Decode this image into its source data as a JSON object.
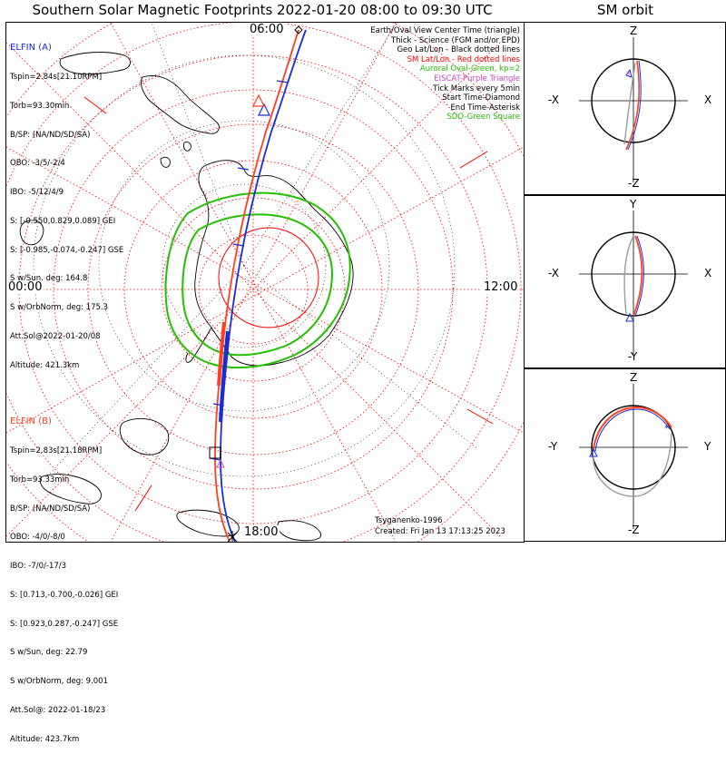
{
  "title": "Southern Solar Magnetic Footprints 2022-01-20 08:00 to 09:30 UTC",
  "orbit_title": "SM orbit",
  "elfin_a": {
    "lines": [
      "ELFIN (A)",
      "Tspin=2.84s[21.10RPM]",
      "Torb=93.30min",
      "B/SP: (NA/ND/SD/SA)",
      "OBO: -3/5/-2/4",
      "IBO: -5/12/4/9",
      "S: [-0.550,0.829,0.089] GEI",
      "S: [-0.985,-0.074,-0.247] GSE",
      "S w/Sun, deg: 164.8",
      "S w/OrbNorm, deg: 175.3",
      "Att.Sol@2022-01-20/08",
      "Altitude: 421.3km"
    ],
    "color": "#1a2bd8"
  },
  "elfin_b": {
    "lines": [
      "ELFIN (B)",
      "Tspin=2.83s[21.18RPM]",
      "Torb=93.33min",
      "B/SP: (NA/ND/SD/SA)",
      "OBO: -4/0/-8/0",
      "IBO: -7/0/-17/3",
      "S: [0.713,-0.700,-0.026] GEI",
      "S: [0.923,0.287,-0.247] GSE",
      "S w/Sun, deg: 22.79",
      "S w/OrbNorm, deg: 9.001",
      "Att.Sol@: 2022-01-18/23",
      "Altitude: 423.7km"
    ],
    "color": "#ff4020"
  },
  "legend": [
    {
      "text": "Earth/Oval View Center Time (triangle)",
      "color": "#000000"
    },
    {
      "text": "Thick - Science (FGM and/or EPD)",
      "color": "#000000"
    },
    {
      "text": "Geo Lat/Lon - Black dotted lines",
      "color": "#000000"
    },
    {
      "text": "SM Lat/Lon - Red dotted lines",
      "color": "#ff0000"
    },
    {
      "text": "Auroral Oval-Green, kp=2",
      "color": "#22c000"
    },
    {
      "text": "EISCAT-Purple Triangle",
      "color": "#cc44cc"
    },
    {
      "text": "Tick Marks every 5min",
      "color": "#000000"
    },
    {
      "text": "Start Time-Diamond",
      "color": "#000000"
    },
    {
      "text": "End Time-Asterisk",
      "color": "#000000"
    },
    {
      "text": "SDO-Green Square",
      "color": "#22c000"
    }
  ],
  "clock_labels": {
    "top": "06:00",
    "left": "00:00",
    "right": "12:00",
    "bottom": "18:00"
  },
  "credits": {
    "author": "Tsyganenko-1996",
    "created": "Created: Fri Jan 13 17:13:25 2023"
  },
  "orbit_panels": [
    {
      "left": "-X",
      "right": "X",
      "top": "Z",
      "bottom": "-Z"
    },
    {
      "left": "-X",
      "right": "X",
      "top": "Y",
      "bottom": "-Y"
    },
    {
      "left": "-Y",
      "right": "Y",
      "top": "Z",
      "bottom": "-Z"
    }
  ],
  "colors": {
    "elfin_a": "#1a2bd8",
    "elfin_b": "#ff4020",
    "sm_grid": "#ff0000",
    "geo_grid": "#000000",
    "oval": "#22c000",
    "eiscat": "#cc44cc"
  },
  "chart_data": {
    "type": "polar footprint map",
    "projection": "southern hemisphere, MLT clock",
    "time_range": "2022-01-20 08:00 to 09:30 UTC",
    "auroral_oval_kp": 2,
    "series": [
      {
        "name": "ELFIN (A)",
        "color": "#1a2bd8"
      },
      {
        "name": "ELFIN (B)",
        "color": "#ff4020"
      }
    ]
  }
}
